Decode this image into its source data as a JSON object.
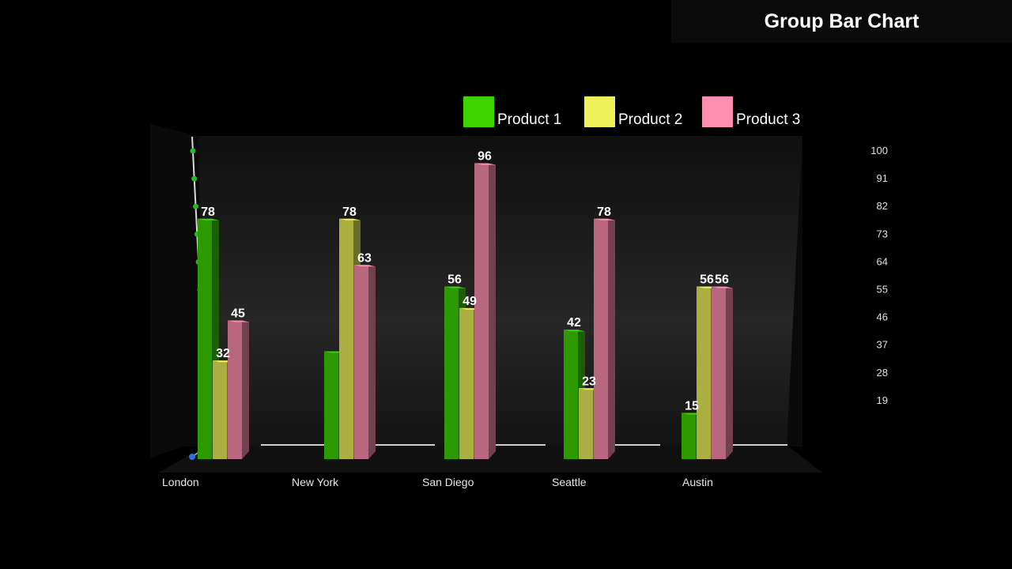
{
  "title": "Group Bar Chart",
  "chart_data": {
    "type": "bar",
    "title": "Group Bar Chart",
    "categories": [
      "London",
      "New York",
      "San Diego",
      "Seattle",
      "Austin"
    ],
    "series": [
      {
        "name": "Product 1",
        "color": "#3fd400",
        "values": [
          78,
          35,
          56,
          42,
          15
        ]
      },
      {
        "name": "Product 2",
        "color": "#eef15a",
        "values": [
          32,
          78,
          49,
          23,
          56
        ]
      },
      {
        "name": "Product 3",
        "color": "#ff8fb0",
        "values": [
          45,
          63,
          96,
          78,
          56
        ]
      }
    ],
    "data_labels": [
      [
        "78",
        "",
        "56",
        "42",
        "15"
      ],
      [
        "32",
        "78",
        "49",
        "23",
        "56"
      ],
      [
        "45",
        "63",
        "96",
        "78",
        "56"
      ]
    ],
    "y_ticks": [
      100,
      91,
      82,
      73,
      64,
      55,
      46,
      37,
      28,
      19
    ],
    "ylim": [
      0,
      100
    ],
    "legend_position": "top",
    "grid": false
  }
}
